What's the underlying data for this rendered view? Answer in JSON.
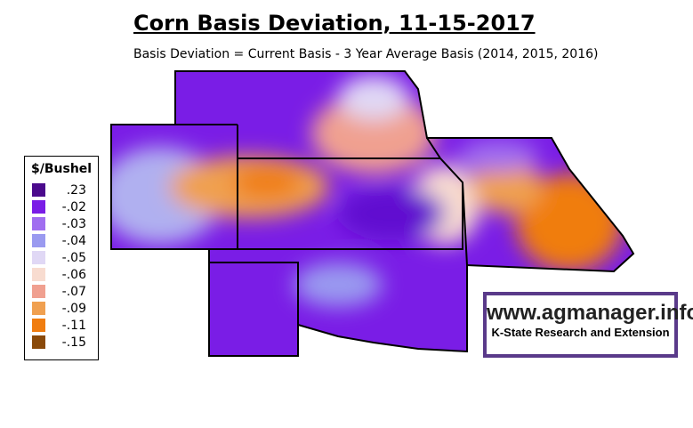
{
  "header": {
    "title": "Corn Basis Deviation, 11-15-2017",
    "subtitle": "Basis Deviation = Current Basis - 3 Year Average Basis (2014, 2015, 2016)"
  },
  "legend": {
    "title": "$/Bushel",
    "items": [
      {
        "label": ".23",
        "color": "#4b0a8c"
      },
      {
        "label": "-.02",
        "color": "#7a1de6"
      },
      {
        "label": "-.03",
        "color": "#a06ef0"
      },
      {
        "label": "-.04",
        "color": "#9a9af0"
      },
      {
        "label": "-.05",
        "color": "#e0d8f5"
      },
      {
        "label": "-.06",
        "color": "#f8dcd0"
      },
      {
        "label": "-.07",
        "color": "#f0a090"
      },
      {
        "label": "-.09",
        "color": "#f0a050"
      },
      {
        "label": "-.11",
        "color": "#f07d10"
      },
      {
        "label": "-.15",
        "color": "#8a4a0a"
      }
    ]
  },
  "logo": {
    "url": "www.agmanager.info",
    "org": "K-State Research and Extension"
  }
}
